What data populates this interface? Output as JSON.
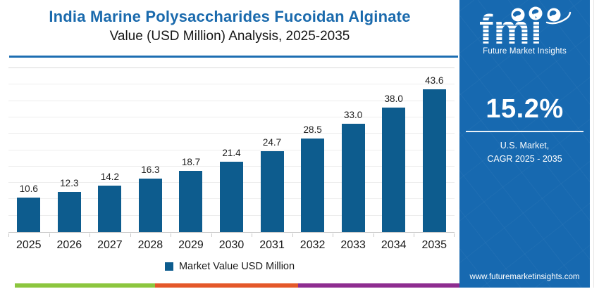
{
  "header": {
    "title": "India Marine Polysaccharides Fucoidan Alginate",
    "subtitle": "Value (USD Million) Analysis, 2025-2035"
  },
  "chart_data": {
    "type": "bar",
    "categories": [
      "2025",
      "2026",
      "2027",
      "2028",
      "2029",
      "2030",
      "2031",
      "2032",
      "2033",
      "2034",
      "2035"
    ],
    "values": [
      10.6,
      12.3,
      14.2,
      16.3,
      18.7,
      21.4,
      24.7,
      28.5,
      33.0,
      38.0,
      43.6
    ],
    "title": "India Marine Polysaccharides Fucoidan Alginate Value (USD Million) Analysis, 2025-2035",
    "xlabel": "",
    "ylabel": "",
    "ylim": [
      0,
      50
    ],
    "grid_step": 5,
    "grid": "horizontal",
    "legend": "Market Value USD Million",
    "legend_position": "bottom",
    "data_labels": "one-decimal"
  },
  "sidebar": {
    "logo_text": "fmi",
    "logo_subtext": "Future Market Insights",
    "cagr_value": "15.2%",
    "market_label_line1": "U.S. Market,",
    "market_label_line2": "CAGR 2025 - 2035",
    "website": "www.futuremarketinsights.com"
  },
  "colors": {
    "title_blue": "#1a6aad",
    "underline_blue": "#1d6eb2",
    "bar_blue": "#0d5c8e",
    "sidebar_blue": "#1769b0",
    "strip_green": "#8cc63e",
    "strip_orange": "#e45829",
    "strip_purple": "#8e2d90"
  }
}
